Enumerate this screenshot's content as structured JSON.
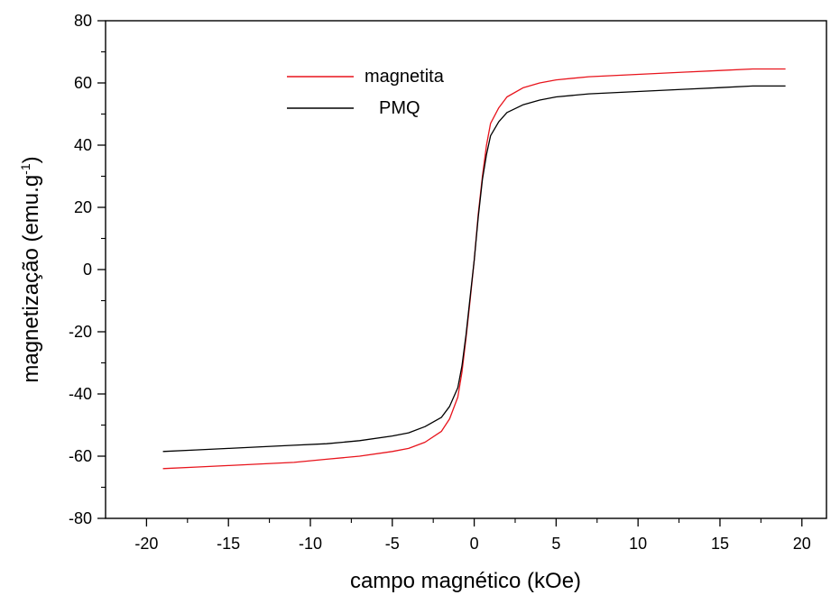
{
  "chart_data": {
    "type": "line",
    "title": "",
    "xlabel": "campo magnético (kOe)",
    "ylabel_main": "magnetização (emu.g",
    "ylabel_sup": "-1",
    "ylabel_close": ")",
    "xlim": [
      -22.5,
      21.5
    ],
    "ylim": [
      -80,
      80
    ],
    "xticks": [
      -20,
      -15,
      -10,
      -5,
      0,
      5,
      10,
      15,
      20
    ],
    "yticks": [
      -80,
      -60,
      -40,
      -20,
      0,
      20,
      40,
      60,
      80
    ],
    "grid": false,
    "legend_position": "top-center",
    "series": [
      {
        "name": "magnetita",
        "color": "#e8141c",
        "x": [
          -19,
          -17,
          -15,
          -13,
          -11,
          -9,
          -7,
          -5,
          -4,
          -3,
          -2,
          -1.5,
          -1,
          -0.75,
          -0.5,
          -0.25,
          0,
          0.25,
          0.5,
          0.75,
          1,
          1.5,
          2,
          3,
          4,
          5,
          7,
          9,
          11,
          13,
          15,
          17,
          19
        ],
        "y": [
          -64,
          -63.5,
          -63,
          -62.5,
          -62,
          -61,
          -60,
          -58.5,
          -57.5,
          -55.5,
          -52,
          -48,
          -41,
          -33,
          -22,
          -10,
          3,
          18,
          30,
          40,
          47,
          52,
          55.5,
          58.5,
          60,
          61,
          62,
          62.5,
          63,
          63.5,
          64,
          64.5,
          64.5
        ]
      },
      {
        "name": "PMQ",
        "color": "#000000",
        "x": [
          -19,
          -17,
          -15,
          -13,
          -11,
          -9,
          -7,
          -5,
          -4,
          -3,
          -2,
          -1.5,
          -1,
          -0.75,
          -0.5,
          -0.25,
          0,
          0.25,
          0.5,
          0.75,
          1,
          1.5,
          2,
          3,
          4,
          5,
          7,
          9,
          11,
          13,
          15,
          17,
          19
        ],
        "y": [
          -58.5,
          -58,
          -57.5,
          -57,
          -56.5,
          -56,
          -55,
          -53.5,
          -52.5,
          -50.5,
          -47.5,
          -44,
          -38,
          -31,
          -21,
          -9,
          3,
          17,
          29,
          37,
          43,
          47.5,
          50.5,
          53,
          54.5,
          55.5,
          56.5,
          57,
          57.5,
          58,
          58.5,
          59,
          59
        ]
      }
    ]
  }
}
